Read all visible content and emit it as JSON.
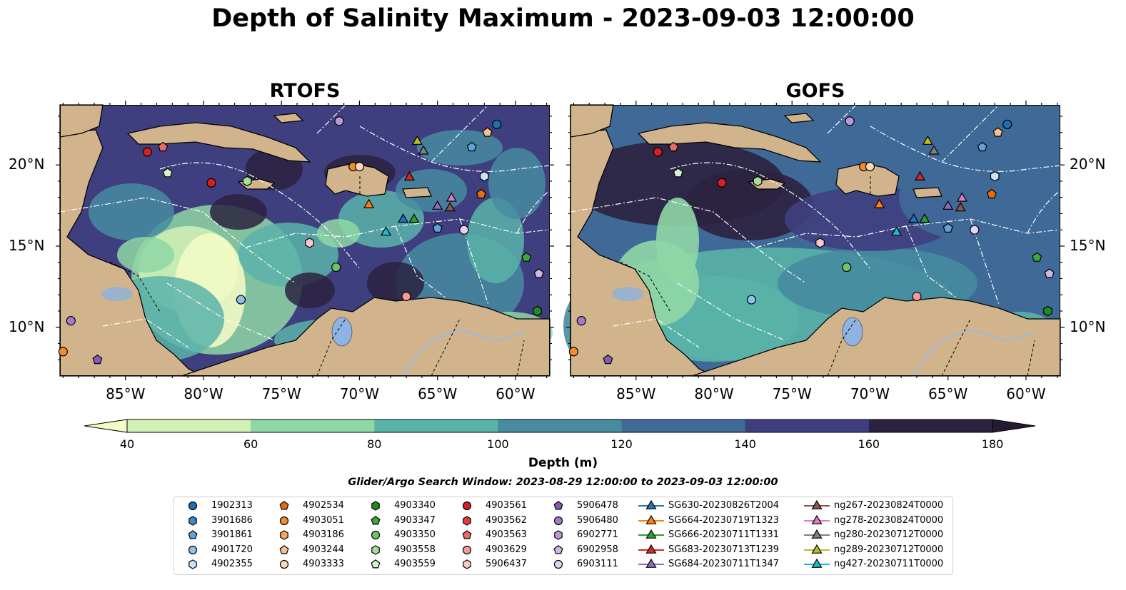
{
  "title": "Depth of Salinity Maximum - 2023-09-03 12:00:00",
  "panels": [
    {
      "title": "RTOFS"
    },
    {
      "title": "GOFS"
    }
  ],
  "axes": {
    "lon_ticks": [
      "85°W",
      "80°W",
      "75°W",
      "70°W",
      "65°W",
      "60°W"
    ],
    "lat_ticks": [
      "20°N",
      "15°N",
      "10°N"
    ]
  },
  "colorbar": {
    "label": "Depth (m)",
    "ticks": [
      "40",
      "60",
      "80",
      "100",
      "120",
      "140",
      "160",
      "180"
    ],
    "colors": [
      "#f6fbc5",
      "#d3f1b6",
      "#8fd7a5",
      "#5ab3a9",
      "#478ba1",
      "#3f6a98",
      "#3f3f7f",
      "#2c2240",
      "#251a2e"
    ],
    "extend": "both"
  },
  "search_window": "Glider/Argo Search Window: 2023-08-29 12:00:00 to 2023-09-03 12:00:00",
  "map_colors": {
    "land": "#d2b48c",
    "lake": "#8fb3e3",
    "river": "#9ab8e0"
  },
  "legend": {
    "columns": [
      [
        {
          "label": "1902313",
          "marker": "circle",
          "color": "#1f6fb0"
        },
        {
          "label": "3901686",
          "marker": "hexagon",
          "color": "#3a8ac8"
        },
        {
          "label": "3901861",
          "marker": "pentagon",
          "color": "#5fa3d8"
        },
        {
          "label": "4901720",
          "marker": "circle",
          "color": "#8fc0ea"
        },
        {
          "label": "4902355",
          "marker": "hexagon",
          "color": "#c8e3f8"
        }
      ],
      [
        {
          "label": "4902534",
          "marker": "pentagon",
          "color": "#e86c0e"
        },
        {
          "label": "4903051",
          "marker": "circle",
          "color": "#f58c2c"
        },
        {
          "label": "4903186",
          "marker": "hexagon",
          "color": "#f7a65e"
        },
        {
          "label": "4903244",
          "marker": "pentagon",
          "color": "#f9c08e"
        },
        {
          "label": "4903333",
          "marker": "circle",
          "color": "#fbd9b7"
        }
      ],
      [
        {
          "label": "4903340",
          "marker": "hexagon",
          "color": "#228a22"
        },
        {
          "label": "4903347",
          "marker": "pentagon",
          "color": "#3aa83a"
        },
        {
          "label": "4903350",
          "marker": "circle",
          "color": "#6cc46c"
        },
        {
          "label": "4903558",
          "marker": "hexagon",
          "color": "#a5df9c"
        },
        {
          "label": "4903559",
          "marker": "pentagon",
          "color": "#d4f3cc"
        }
      ],
      [
        {
          "label": "4903561",
          "marker": "circle",
          "color": "#d42020"
        },
        {
          "label": "4903562",
          "marker": "hexagon",
          "color": "#e03c3c"
        },
        {
          "label": "4903563",
          "marker": "pentagon",
          "color": "#ea6a6a"
        },
        {
          "label": "4903629",
          "marker": "circle",
          "color": "#f39a9a"
        },
        {
          "label": "5906437",
          "marker": "hexagon",
          "color": "#f9c9c9"
        }
      ],
      [
        {
          "label": "5906478",
          "marker": "pentagon",
          "color": "#8a58b8"
        },
        {
          "label": "5906480",
          "marker": "circle",
          "color": "#a57ac9"
        },
        {
          "label": "6902771",
          "marker": "hexagon",
          "color": "#bb99d8"
        },
        {
          "label": "6902958",
          "marker": "pentagon",
          "color": "#d0b7e6"
        },
        {
          "label": "6903111",
          "marker": "circle",
          "color": "#e6d3f3"
        }
      ],
      [
        {
          "label": "SG630-20230826T2004",
          "marker": "triangle",
          "color": "#1f77b4"
        },
        {
          "label": "SG664-20230719T1323",
          "marker": "triangle",
          "color": "#ff7f0e"
        },
        {
          "label": "SG666-20230711T1331",
          "marker": "triangle",
          "color": "#2ca02c"
        },
        {
          "label": "SG683-20230713T1239",
          "marker": "triangle",
          "color": "#d62728"
        },
        {
          "label": "SG684-20230711T1347",
          "marker": "triangle",
          "color": "#9467bd"
        }
      ],
      [
        {
          "label": "ng267-20230824T0000",
          "marker": "triangle",
          "color": "#8c564b"
        },
        {
          "label": "ng278-20230824T0000",
          "marker": "triangle",
          "color": "#e377c2"
        },
        {
          "label": "ng280-20230712T0000",
          "marker": "triangle",
          "color": "#7f7f7f"
        },
        {
          "label": "ng289-20230712T0000",
          "marker": "triangle",
          "color": "#bcbd22"
        },
        {
          "label": "ng427-20230711T0000",
          "marker": "triangle",
          "color": "#17becf"
        }
      ]
    ]
  },
  "markers": [
    {
      "lon": -61.2,
      "lat": 22.5,
      "marker": "circle",
      "color": "#1f6fb0"
    },
    {
      "lon": -62.0,
      "lat": 19.3,
      "marker": "hexagon",
      "color": "#c8e3f8"
    },
    {
      "lon": -62.8,
      "lat": 21.1,
      "marker": "pentagon",
      "color": "#5fa3d8"
    },
    {
      "lon": -65.0,
      "lat": 16.1,
      "marker": "pentagon",
      "color": "#5fa3d8"
    },
    {
      "lon": -77.6,
      "lat": 11.7,
      "marker": "circle",
      "color": "#8fc0ea"
    },
    {
      "lon": -62.2,
      "lat": 18.2,
      "marker": "pentagon",
      "color": "#e86c0e"
    },
    {
      "lon": -89.0,
      "lat": 8.5,
      "marker": "circle",
      "color": "#f58c2c"
    },
    {
      "lon": -70.4,
      "lat": 19.9,
      "marker": "circle",
      "color": "#f58c2c"
    },
    {
      "lon": -61.8,
      "lat": 22.0,
      "marker": "pentagon",
      "color": "#f9c08e"
    },
    {
      "lon": -73.2,
      "lat": 15.2,
      "marker": "hexagon",
      "color": "#f9c9c9"
    },
    {
      "lon": -70.0,
      "lat": 19.9,
      "marker": "circle",
      "color": "#fbd9b7"
    },
    {
      "lon": -58.6,
      "lat": 11.0,
      "marker": "hexagon",
      "color": "#228a22"
    },
    {
      "lon": -59.3,
      "lat": 14.3,
      "marker": "pentagon",
      "color": "#3aa83a"
    },
    {
      "lon": -71.5,
      "lat": 13.7,
      "marker": "circle",
      "color": "#6cc46c"
    },
    {
      "lon": -77.2,
      "lat": 19.0,
      "marker": "hexagon",
      "color": "#a5df9c"
    },
    {
      "lon": -82.3,
      "lat": 19.5,
      "marker": "pentagon",
      "color": "#d4f3cc"
    },
    {
      "lon": -83.6,
      "lat": 20.8,
      "marker": "circle",
      "color": "#d42020"
    },
    {
      "lon": -79.5,
      "lat": 18.9,
      "marker": "circle",
      "color": "#d42020"
    },
    {
      "lon": -82.6,
      "lat": 21.1,
      "marker": "pentagon",
      "color": "#ea6a6a"
    },
    {
      "lon": -67.0,
      "lat": 11.9,
      "marker": "circle",
      "color": "#f39a9a"
    },
    {
      "lon": -86.8,
      "lat": 8.0,
      "marker": "pentagon",
      "color": "#8a58b8"
    },
    {
      "lon": -88.5,
      "lat": 10.4,
      "marker": "circle",
      "color": "#a57ac9"
    },
    {
      "lon": -58.5,
      "lat": 13.3,
      "marker": "pentagon",
      "color": "#d0b7e6"
    },
    {
      "lon": -71.3,
      "lat": 22.7,
      "marker": "circle",
      "color": "#bb99d8"
    },
    {
      "lon": -63.3,
      "lat": 16.0,
      "marker": "circle",
      "color": "#e6d3f3"
    },
    {
      "lon": -67.2,
      "lat": 16.7,
      "marker": "triangle",
      "color": "#1f77b4"
    },
    {
      "lon": -69.4,
      "lat": 17.6,
      "marker": "triangle",
      "color": "#ff7f0e"
    },
    {
      "lon": -66.5,
      "lat": 16.7,
      "marker": "triangle",
      "color": "#2ca02c"
    },
    {
      "lon": -66.8,
      "lat": 19.3,
      "marker": "triangle",
      "color": "#d62728"
    },
    {
      "lon": -65.0,
      "lat": 17.5,
      "marker": "triangle",
      "color": "#9467bd"
    },
    {
      "lon": -64.2,
      "lat": 17.4,
      "marker": "triangle",
      "color": "#8c564b"
    },
    {
      "lon": -64.1,
      "lat": 18.0,
      "marker": "triangle",
      "color": "#e377c2"
    },
    {
      "lon": -65.9,
      "lat": 20.9,
      "marker": "triangle",
      "color": "#7f7f7f"
    },
    {
      "lon": -66.3,
      "lat": 21.5,
      "marker": "triangle",
      "color": "#bcbd22"
    },
    {
      "lon": -68.3,
      "lat": 15.9,
      "marker": "triangle",
      "color": "#17becf"
    }
  ]
}
